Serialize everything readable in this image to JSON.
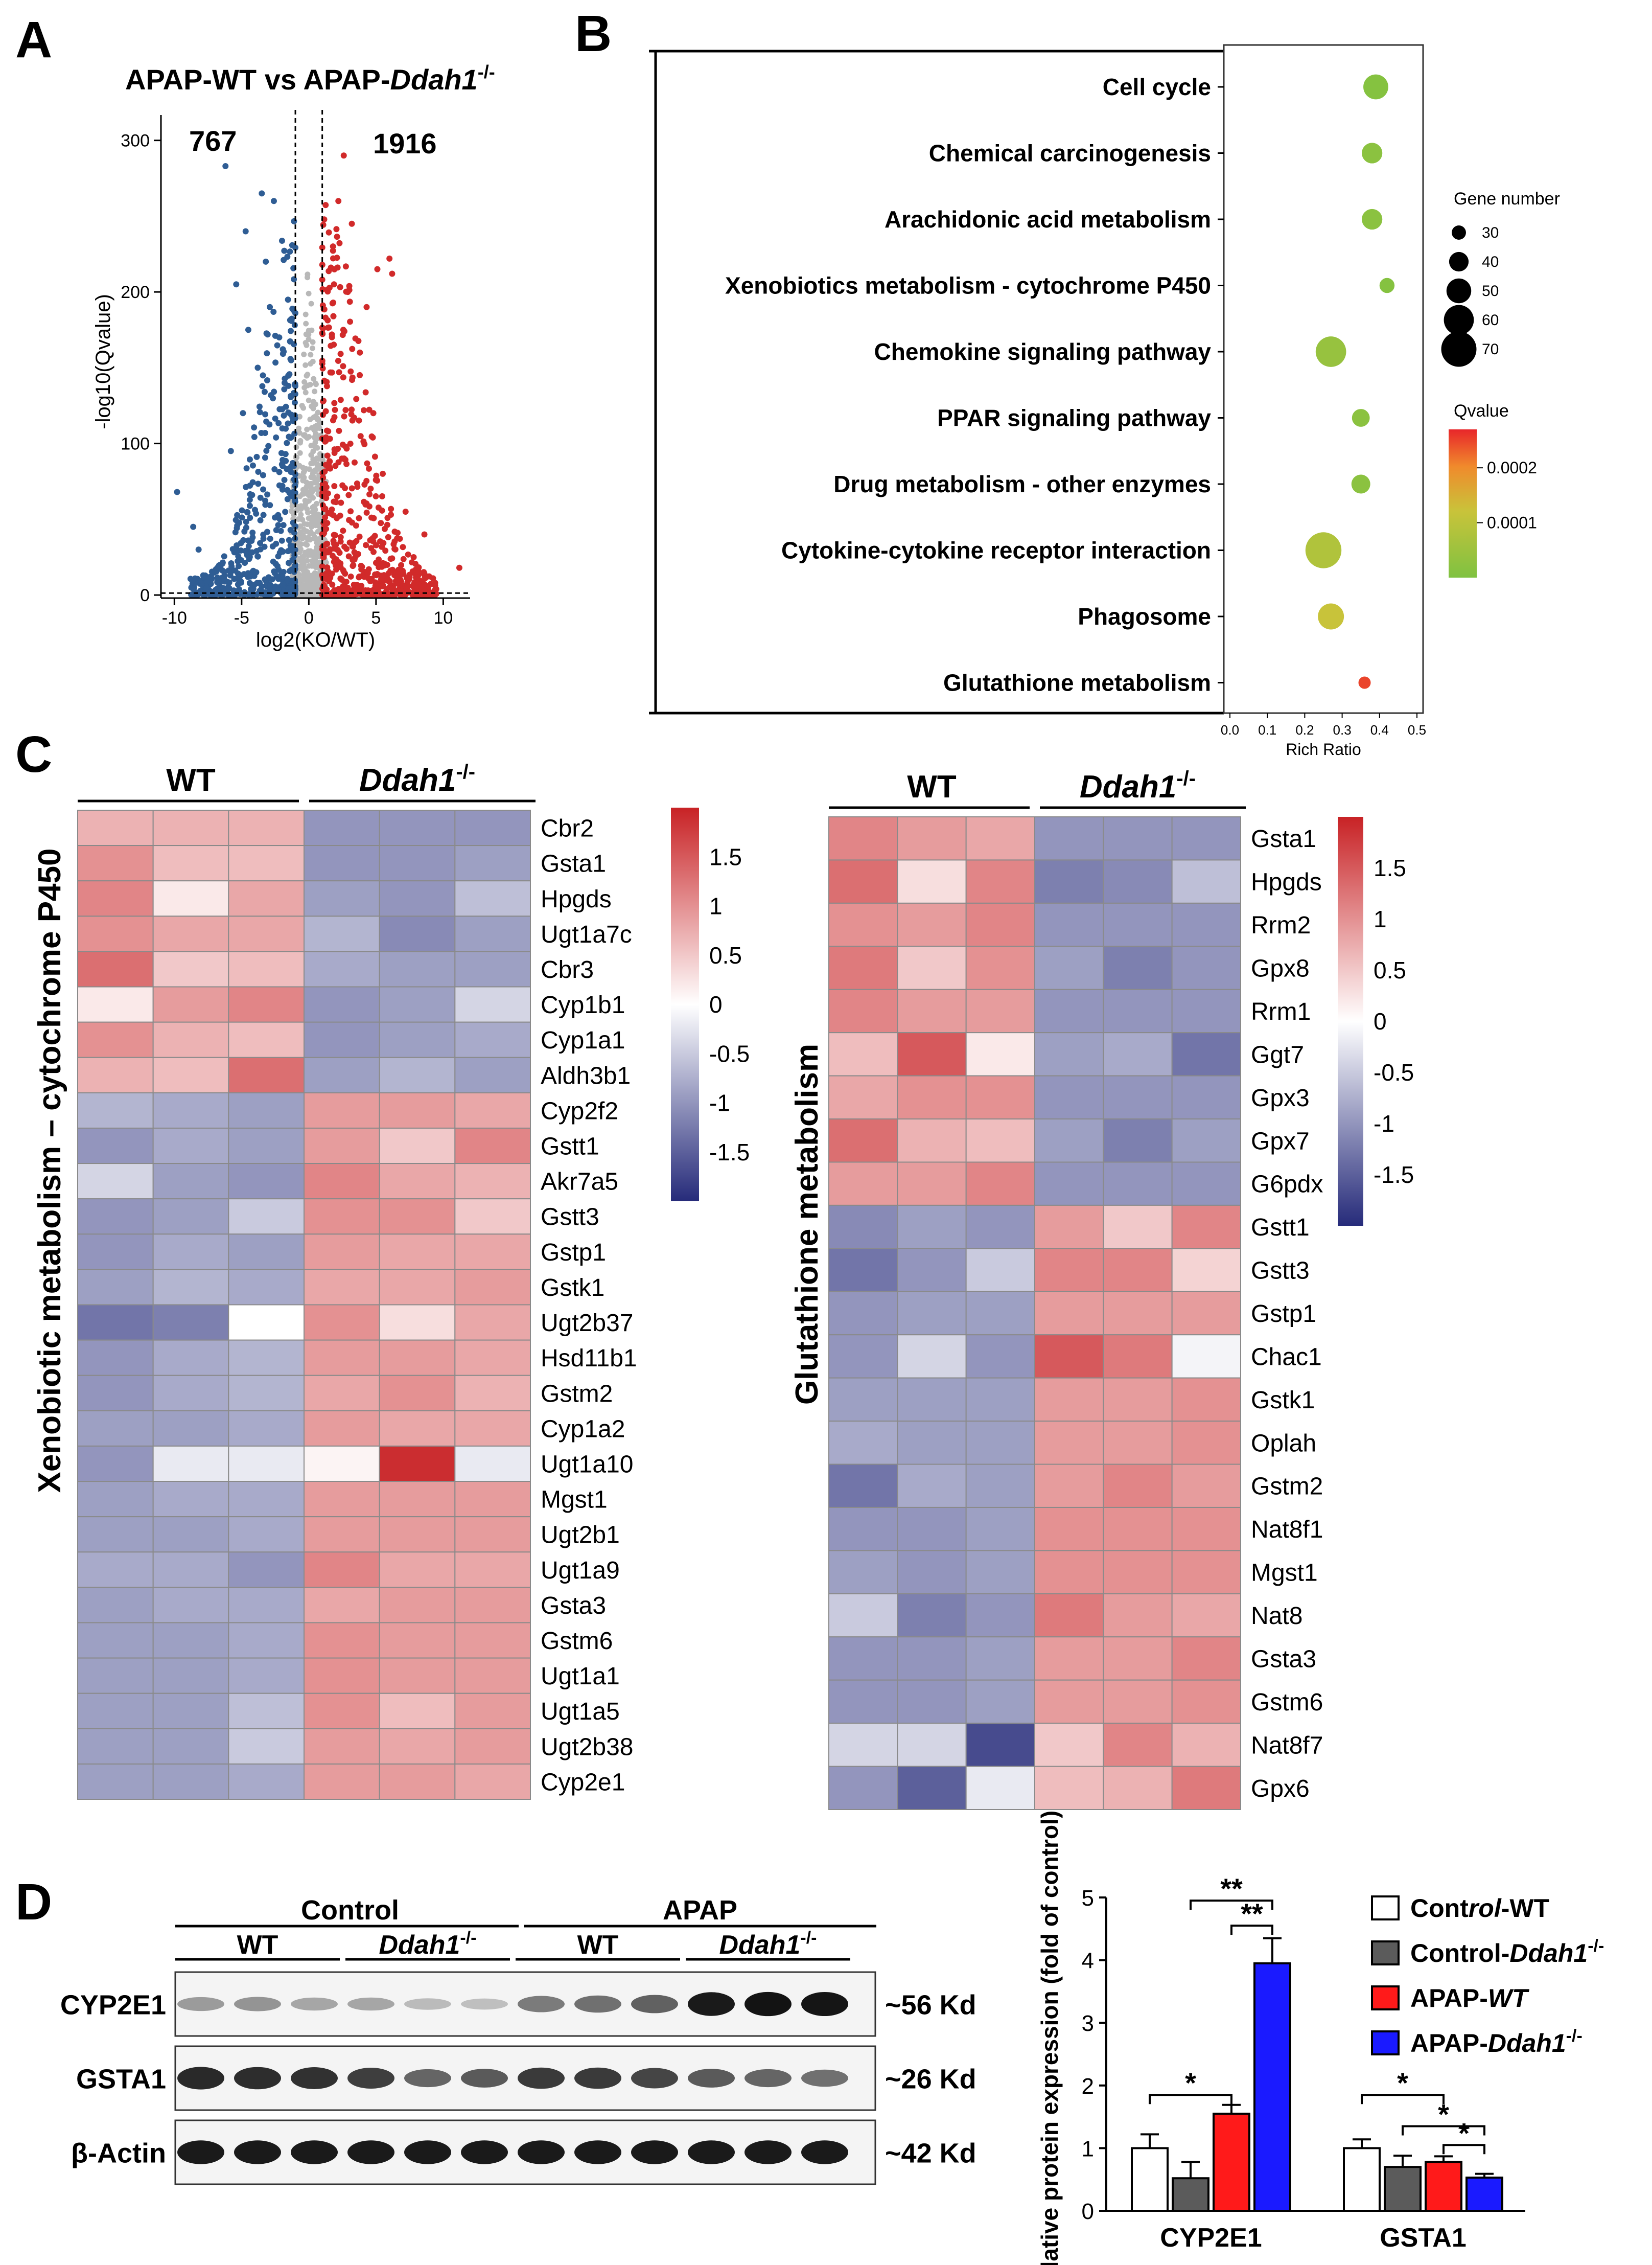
{
  "panel_labels": {
    "a": "A",
    "b": "B",
    "c": "C",
    "d": "D"
  },
  "colors": {
    "up": "#d12a2a",
    "down": "#2f5d94",
    "ns": "#b8b8b8",
    "heat_high": "#c82225",
    "heat_mid": "#ffffff",
    "heat_low": "#262b7a",
    "bar_control_wt": "#ffffff",
    "bar_control_ko": "#5b5b5b",
    "bar_apap_wt": "#ff1a1a",
    "bar_apap_ko": "#1a1aff"
  },
  "chart_data": [
    {
      "id": "A",
      "type": "scatter",
      "title_prefix": "APAP-WT vs APAP-",
      "title_gene": "Ddah1",
      "title_sup": "-/-",
      "xlabel": "log2(KO/WT)",
      "ylabel": "-log10(Qvalue)",
      "xlim": [
        -11,
        12
      ],
      "ylim": [
        -2,
        310
      ],
      "xticks": [
        "-10",
        "-5",
        "0",
        "5",
        "10"
      ],
      "xtick_values": [
        -10,
        -5,
        0,
        5,
        10
      ],
      "yticks": [
        "0",
        "100",
        "200",
        "300"
      ],
      "ytick_values": [
        0,
        100,
        200,
        300
      ],
      "fold_change_threshold": [
        -1,
        1
      ],
      "qvalue_threshold_line": 1.3,
      "down_count": "767",
      "up_count": "1916",
      "down_example_points": [
        [
          -9.8,
          68
        ],
        [
          -8.6,
          45
        ],
        [
          -8.2,
          30
        ],
        [
          -6.2,
          283
        ],
        [
          -5.4,
          205
        ],
        [
          -4.7,
          240
        ],
        [
          -4.5,
          175
        ],
        [
          -3.8,
          150
        ],
        [
          -3.5,
          265
        ],
        [
          -2.9,
          190
        ],
        [
          -6.8,
          18
        ],
        [
          -7.5,
          10
        ],
        [
          -5.8,
          95
        ],
        [
          -4.9,
          120
        ],
        [
          -3.2,
          220
        ],
        [
          -2.6,
          260
        ],
        [
          -2.2,
          170
        ],
        [
          -1.8,
          140
        ]
      ],
      "up_example_points": [
        [
          11.2,
          18
        ],
        [
          8.6,
          40
        ],
        [
          7.2,
          55
        ],
        [
          6.6,
          10
        ],
        [
          6.0,
          222
        ],
        [
          6.2,
          212
        ],
        [
          5.1,
          215
        ],
        [
          4.3,
          190
        ],
        [
          3.2,
          245
        ],
        [
          2.6,
          290
        ],
        [
          2.2,
          260
        ],
        [
          4.8,
          120
        ],
        [
          5.5,
          80
        ],
        [
          3.8,
          160
        ],
        [
          7.8,
          25
        ],
        [
          9.4,
          8
        ],
        [
          2.9,
          200
        ],
        [
          1.8,
          230
        ]
      ]
    },
    {
      "id": "B",
      "type": "scatter",
      "subtype": "kegg_bubble",
      "xlabel": "Rich Ratio",
      "xlim": [
        0.0,
        0.5
      ],
      "xticks": [
        "0.0",
        "0.1",
        "0.2",
        "0.3",
        "0.4",
        "0.5"
      ],
      "xtick_values": [
        0.0,
        0.1,
        0.2,
        0.3,
        0.4,
        0.5
      ],
      "pathways": [
        "Cell cycle",
        "Chemical carcinogenesis",
        "Arachidonic acid metabolism",
        "Xenobiotics metabolism - cytochrome P450",
        "Chemokine signaling pathway",
        "PPAR signaling pathway",
        "Drug metabolism - other enzymes",
        "Cytokine-cytokine receptor interaction",
        "Phagosome",
        "Glutathione metabolism"
      ],
      "rich_ratio": [
        0.39,
        0.38,
        0.38,
        0.42,
        0.27,
        0.35,
        0.35,
        0.25,
        0.27,
        0.36
      ],
      "gene_number": [
        48,
        40,
        40,
        30,
        58,
        35,
        37,
        68,
        50,
        25
      ],
      "qvalue": [
        1e-05,
        2e-05,
        2e-05,
        1e-05,
        4e-05,
        2e-05,
        2e-05,
        8e-05,
        0.00012,
        0.00025
      ],
      "size_legend_title": "Gene number",
      "size_legend": [
        "30",
        "40",
        "50",
        "60",
        "70"
      ],
      "size_legend_values": [
        30,
        40,
        50,
        60,
        70
      ],
      "color_legend_title": "Qvalue",
      "color_legend_labels": [
        "0.0002",
        "0.0001"
      ],
      "color_legend_values": [
        0.0002,
        0.0001
      ],
      "color_scale_max": 0.00027
    },
    {
      "id": "C1",
      "type": "heatmap",
      "side_title": "Xenobiotic metabolism – cytochrome P450",
      "group_wt": "WT",
      "group_ko": "Ddah1",
      "group_ko_sup": "-/-",
      "genes": [
        "Cbr2",
        "Gsta1",
        "Hpgds",
        "Ugt1a7c",
        "Cbr3",
        "Cyp1b1",
        "Cyp1a1",
        "Aldh3b1",
        "Cyp2f2",
        "Gstt1",
        "Akr7a5",
        "Gstt3",
        "Gstp1",
        "Gstk1",
        "Ugt2b37",
        "Hsd11b1",
        "Gstm2",
        "Cyp1a2",
        "Ugt1a10",
        "Mgst1",
        "Ugt2b1",
        "Ugt1a9",
        "Gsta3",
        "Gstm6",
        "Ugt1a1",
        "Ugt1a5",
        "Ugt2b38",
        "Cyp2e1"
      ],
      "values": [
        [
          0.7,
          0.7,
          0.7,
          -1.0,
          -1.0,
          -1.0
        ],
        [
          1.0,
          0.6,
          0.6,
          -1.0,
          -1.0,
          -0.9
        ],
        [
          1.1,
          0.2,
          0.8,
          -0.9,
          -1.0,
          -0.6
        ],
        [
          1.0,
          0.8,
          0.8,
          -0.7,
          -1.1,
          -0.9
        ],
        [
          1.3,
          0.5,
          0.6,
          -0.8,
          -0.9,
          -0.9
        ],
        [
          0.2,
          0.9,
          1.1,
          -1.0,
          -0.9,
          -0.4
        ],
        [
          1.0,
          0.7,
          0.6,
          -1.0,
          -0.9,
          -0.8
        ],
        [
          0.7,
          0.6,
          1.3,
          -0.9,
          -0.7,
          -0.9
        ],
        [
          -0.7,
          -0.8,
          -0.9,
          0.9,
          0.9,
          0.8
        ],
        [
          -1.0,
          -0.8,
          -0.9,
          0.9,
          0.5,
          1.1
        ],
        [
          -0.4,
          -0.9,
          -1.0,
          1.1,
          0.8,
          0.7
        ],
        [
          -1.0,
          -0.9,
          -0.5,
          1.0,
          1.0,
          0.5
        ],
        [
          -1.0,
          -0.8,
          -0.9,
          0.9,
          0.8,
          0.8
        ],
        [
          -0.9,
          -0.7,
          -0.8,
          0.8,
          0.8,
          0.9
        ],
        [
          -1.3,
          -1.2,
          0.0,
          1.0,
          0.3,
          0.8
        ],
        [
          -1.0,
          -0.8,
          -0.7,
          0.9,
          0.9,
          0.8
        ],
        [
          -1.0,
          -0.8,
          -0.7,
          0.8,
          1.0,
          0.7
        ],
        [
          -0.9,
          -0.9,
          -0.8,
          0.9,
          0.8,
          0.8
        ],
        [
          -1.0,
          -0.2,
          -0.2,
          0.1,
          1.9,
          -0.2
        ],
        [
          -0.9,
          -0.8,
          -0.8,
          0.9,
          0.9,
          0.9
        ],
        [
          -0.9,
          -0.9,
          -0.8,
          0.9,
          0.9,
          0.9
        ],
        [
          -0.8,
          -0.8,
          -1.0,
          1.1,
          0.8,
          0.8
        ],
        [
          -0.9,
          -0.8,
          -0.8,
          0.8,
          0.9,
          0.9
        ],
        [
          -0.9,
          -0.9,
          -0.8,
          1.0,
          0.9,
          0.9
        ],
        [
          -0.9,
          -0.9,
          -0.8,
          1.0,
          0.9,
          0.9
        ],
        [
          -0.9,
          -0.9,
          -0.6,
          1.0,
          0.6,
          0.9
        ],
        [
          -0.9,
          -0.9,
          -0.5,
          0.9,
          0.8,
          0.9
        ],
        [
          -0.9,
          -0.9,
          -0.8,
          0.9,
          0.9,
          0.8
        ]
      ],
      "color_range": [
        -2,
        2
      ],
      "legend_ticks": [
        "1.5",
        "1",
        "0.5",
        "0",
        "-0.5",
        "-1",
        "-1.5"
      ],
      "legend_tick_values": [
        1.5,
        1,
        0.5,
        0,
        -0.5,
        -1,
        -1.5
      ]
    },
    {
      "id": "C2",
      "type": "heatmap",
      "side_title": "Glutathione metabolism",
      "group_wt": "WT",
      "group_ko": "Ddah1",
      "group_ko_sup": "-/-",
      "genes": [
        "Gsta1",
        "Hpgds",
        "Rrm2",
        "Gpx8",
        "Rrm1",
        "Ggt7",
        "Gpx3",
        "Gpx7",
        "G6pdx",
        "Gstt1",
        "Gstt3",
        "Gstp1",
        "Chac1",
        "Gstk1",
        "Oplah",
        "Gstm2",
        "Nat8f1",
        "Mgst1",
        "Nat8",
        "Gsta3",
        "Gstm6",
        "Nat8f7",
        "Gpx6"
      ],
      "values": [
        [
          1.1,
          0.9,
          0.8,
          -1.0,
          -1.0,
          -1.0
        ],
        [
          1.3,
          0.3,
          1.1,
          -1.2,
          -1.1,
          -0.6
        ],
        [
          1.0,
          0.9,
          1.1,
          -1.0,
          -1.0,
          -1.0
        ],
        [
          1.2,
          0.5,
          1.0,
          -0.9,
          -1.2,
          -1.0
        ],
        [
          1.1,
          0.9,
          0.9,
          -1.0,
          -1.0,
          -1.0
        ],
        [
          0.6,
          1.5,
          0.2,
          -0.9,
          -0.8,
          -1.3
        ],
        [
          0.8,
          1.0,
          1.0,
          -1.0,
          -1.0,
          -1.0
        ],
        [
          1.3,
          0.7,
          0.6,
          -0.9,
          -1.2,
          -0.9
        ],
        [
          0.9,
          0.9,
          1.1,
          -1.0,
          -1.0,
          -1.0
        ],
        [
          -1.1,
          -0.9,
          -1.0,
          0.9,
          0.5,
          1.1
        ],
        [
          -1.3,
          -1.0,
          -0.5,
          1.1,
          1.1,
          0.4
        ],
        [
          -1.0,
          -0.9,
          -0.9,
          0.9,
          0.9,
          0.9
        ],
        [
          -1.0,
          -0.4,
          -1.0,
          1.5,
          1.2,
          -0.1
        ],
        [
          -0.9,
          -0.9,
          -0.9,
          0.9,
          0.9,
          1.0
        ],
        [
          -0.8,
          -0.9,
          -0.9,
          0.9,
          0.9,
          1.0
        ],
        [
          -1.3,
          -0.8,
          -0.9,
          0.9,
          1.1,
          0.9
        ],
        [
          -1.0,
          -1.0,
          -0.9,
          1.0,
          1.0,
          1.0
        ],
        [
          -0.9,
          -1.0,
          -0.9,
          1.0,
          1.0,
          1.0
        ],
        [
          -0.5,
          -1.2,
          -1.0,
          1.2,
          0.9,
          0.8
        ],
        [
          -1.0,
          -1.0,
          -0.9,
          0.9,
          0.9,
          1.1
        ],
        [
          -1.0,
          -1.0,
          -0.9,
          0.9,
          0.9,
          1.0
        ],
        [
          -0.4,
          -0.4,
          -1.7,
          0.5,
          1.1,
          0.7
        ],
        [
          -1.0,
          -1.5,
          -0.2,
          0.6,
          0.7,
          1.2
        ]
      ],
      "color_range": [
        -2,
        2
      ],
      "legend_ticks": [
        "1.5",
        "1",
        "0.5",
        "0",
        "-0.5",
        "-1",
        "-1.5"
      ],
      "legend_tick_values": [
        1.5,
        1,
        0.5,
        0,
        -0.5,
        -1,
        -1.5
      ]
    },
    {
      "id": "D_blot",
      "type": "table",
      "subtype": "western_blot",
      "group_control": "Control",
      "group_apap": "APAP",
      "subgroup_wt": "WT",
      "subgroup_ko": "Ddah1",
      "subgroup_ko_sup": "-/-",
      "proteins": [
        "CYP2E1",
        "GSTA1",
        "β-Actin"
      ],
      "sizes": [
        "~56 Kd",
        "~26 Kd",
        "~42 Kd"
      ],
      "band_intensity": [
        [
          0.35,
          0.38,
          0.3,
          0.3,
          0.2,
          0.18,
          0.5,
          0.55,
          0.62,
          0.95,
          0.98,
          0.97
        ],
        [
          0.88,
          0.86,
          0.84,
          0.78,
          0.6,
          0.65,
          0.8,
          0.8,
          0.75,
          0.65,
          0.6,
          0.55
        ],
        [
          0.95,
          0.95,
          0.95,
          0.95,
          0.95,
          0.95,
          0.95,
          0.95,
          0.95,
          0.95,
          0.95,
          0.95
        ]
      ]
    },
    {
      "id": "D_bar",
      "type": "bar",
      "ylabel": "Relative protein expression (fold of control)",
      "categories": [
        "CYP2E1",
        "GSTA1"
      ],
      "ylim": [
        0,
        5
      ],
      "yticks": [
        "0",
        "1",
        "2",
        "3",
        "4",
        "5"
      ],
      "ytick_values": [
        0,
        1,
        2,
        3,
        4,
        5
      ],
      "series": [
        {
          "name_parts": [
            [
              "Cont",
              false
            ],
            [
              "rol",
              true
            ],
            [
              "-WT",
              false
            ]
          ],
          "values": [
            1.0,
            1.0
          ],
          "errors": [
            0.22,
            0.14
          ]
        },
        {
          "name_parts": [
            [
              "Control-",
              false
            ],
            [
              "Ddah1",
              true
            ]
          ],
          "name_sup": "-/-",
          "values": [
            0.52,
            0.7
          ],
          "errors": [
            0.26,
            0.18
          ]
        },
        {
          "name_parts": [
            [
              "APAP-",
              false
            ],
            [
              "WT",
              true
            ]
          ],
          "values": [
            1.55,
            0.78
          ],
          "errors": [
            0.14,
            0.09
          ]
        },
        {
          "name_parts": [
            [
              "APAP-",
              false
            ],
            [
              "Ddah1",
              true
            ]
          ],
          "name_sup": "-/-",
          "values": [
            3.95,
            0.53
          ],
          "errors": [
            0.4,
            0.06
          ]
        }
      ],
      "significance": [
        {
          "cat": 0,
          "from": 0,
          "to": 2,
          "y": 1.85,
          "label": "*"
        },
        {
          "cat": 0,
          "from": 2,
          "to": 3,
          "y": 4.55,
          "label": "**"
        },
        {
          "cat": 0,
          "from": 1,
          "to": 3,
          "y": 4.95,
          "label": "**"
        },
        {
          "cat": 1,
          "from": 0,
          "to": 2,
          "y": 1.85,
          "label": "*"
        },
        {
          "cat": 1,
          "from": 1,
          "to": 3,
          "y": 1.35,
          "label": "*"
        },
        {
          "cat": 1,
          "from": 2,
          "to": 3,
          "y": 1.05,
          "label": "*"
        }
      ]
    }
  ]
}
